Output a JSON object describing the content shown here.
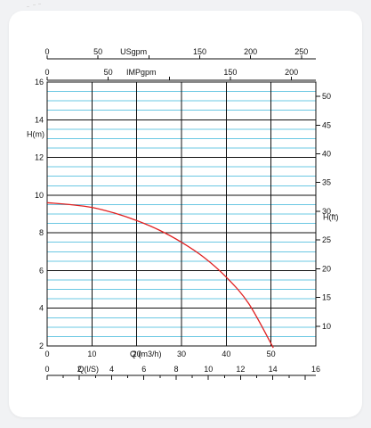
{
  "chart_data": {
    "type": "line",
    "title": "",
    "primary_x": {
      "label": "Q (m3/h)",
      "range": [
        0,
        60
      ],
      "ticks": [
        {
          "value": 0,
          "label": "0"
        },
        {
          "value": 10,
          "label": "10"
        },
        {
          "value": 20,
          "label": "20"
        },
        {
          "value": 30,
          "label": "30"
        },
        {
          "value": 40,
          "label": "40"
        },
        {
          "value": 50,
          "label": "50"
        }
      ]
    },
    "primary_y": {
      "label": "H(m)",
      "range": [
        2,
        16
      ],
      "ticks": [
        "2",
        "4",
        "6",
        "8",
        "10",
        "12",
        "14",
        "16"
      ],
      "tick_values": [
        2,
        4,
        6,
        8,
        10,
        12,
        14,
        16
      ]
    },
    "secondary_y": {
      "label": "H(ft)",
      "ticks": [
        10,
        15,
        20,
        25,
        30,
        35,
        40,
        45,
        50
      ]
    },
    "top_axis_usgpm": {
      "label": "USgpm",
      "ticks": [
        {
          "value": 0,
          "label": "0"
        },
        {
          "value": 50,
          "label": "50"
        },
        {
          "value": 150,
          "label": "150"
        },
        {
          "value": 200,
          "label": "200"
        },
        {
          "value": 250,
          "label": "250"
        }
      ],
      "minor_ticks": [
        100
      ],
      "per_m3h": 4.4029
    },
    "top_axis_impgpm": {
      "label": "IMPgpm",
      "ticks": [
        {
          "value": 0,
          "label": "0"
        },
        {
          "value": 50,
          "label": "50"
        },
        {
          "value": 150,
          "label": "150"
        },
        {
          "value": 200,
          "label": "200"
        }
      ],
      "minor_ticks": [
        100
      ],
      "per_m3h": 3.6662
    },
    "bottom_axis_ls": {
      "label": "Q(l/S)",
      "ticks": [
        {
          "value": 0,
          "label": "0"
        },
        {
          "value": 2,
          "label": "2"
        },
        {
          "value": 4,
          "label": "4"
        },
        {
          "value": 6,
          "label": "6"
        },
        {
          "value": 8,
          "label": "8"
        },
        {
          "value": 10,
          "label": "10"
        },
        {
          "value": 12,
          "label": "12"
        },
        {
          "value": 14,
          "label": "14"
        },
        {
          "value": 16,
          "label": "16"
        }
      ],
      "per_m3h": 0.27778
    },
    "grid": true,
    "series": [
      {
        "color": "#e02020",
        "x": [
          0,
          5,
          10,
          15,
          20,
          25,
          30,
          35,
          40,
          45,
          50.5
        ],
        "y": [
          9.6,
          9.5,
          9.35,
          9.05,
          8.65,
          8.15,
          7.5,
          6.7,
          5.65,
          4.25,
          1.9
        ]
      }
    ],
    "colors": {
      "major_grid": "#111111",
      "minor_grid": "#6bc8e3",
      "curve": "#e02020"
    }
  }
}
